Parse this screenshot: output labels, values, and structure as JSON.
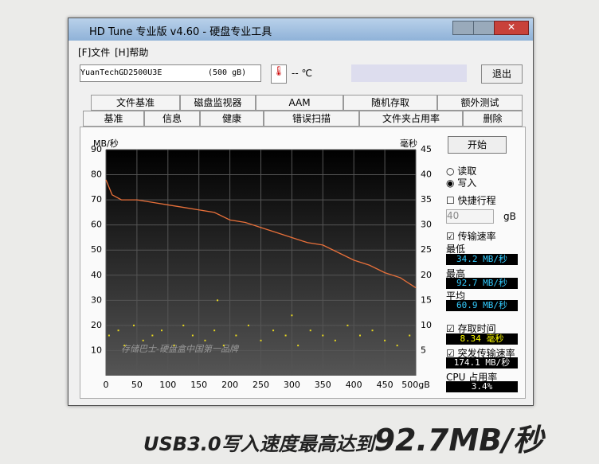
{
  "window": {
    "title": "HD Tune 专业版 v4.60 - 硬盘专业工具",
    "menu": [
      "[F]文件",
      "[H]帮助"
    ],
    "drive": "YuanTechGD2500U3E",
    "drive_size": "(500 gB)",
    "temperature": "-- ℃",
    "exit": "退出"
  },
  "tabs": {
    "row1": [
      "文件基准",
      "磁盘监视器",
      "AAM",
      "随机存取",
      "额外测试"
    ],
    "row2": [
      "基准",
      "信息",
      "健康",
      "错误扫描",
      "文件夹占用率",
      "删除"
    ]
  },
  "panel": {
    "start": "开始",
    "read": "读取",
    "write": "写入",
    "short_stroke": "快捷行程",
    "stroke_value": "40",
    "stroke_unit": "gB",
    "transfer_rate": "传输速率",
    "min_label": "最低",
    "min_value": "34.2 MB/秒",
    "max_label": "最高",
    "max_value": "92.7 MB/秒",
    "avg_label": "平均",
    "avg_value": "60.9 MB/秒",
    "access_time": "存取时间",
    "access_value": "8.34 毫秒",
    "burst_rate": "突发传输速率",
    "burst_value": "174.1 MB/秒",
    "cpu_label": "CPU 占用率",
    "cpu_value": "3.4%"
  },
  "chart_data": {
    "type": "line",
    "y_label": "MB/秒",
    "y2_label": "毫秒",
    "watermark": "存储巴士-硬盘盒中国第一品牌",
    "xlim": [
      0,
      500
    ],
    "xticks": [
      0,
      50,
      100,
      150,
      200,
      250,
      300,
      350,
      400,
      450,
      {
        "value": 500,
        "label": "500gB"
      }
    ],
    "ylim": [
      0,
      90
    ],
    "yticks": [
      10,
      20,
      30,
      40,
      50,
      60,
      70,
      80,
      90
    ],
    "y2lim": [
      0,
      45
    ],
    "y2ticks": [
      5,
      10,
      15,
      20,
      25,
      30,
      35,
      40,
      45
    ],
    "grid": true,
    "series": [
      {
        "name": "传输速率",
        "color": "#e8703a",
        "x": [
          0,
          10,
          25,
          50,
          75,
          100,
          125,
          150,
          175,
          200,
          225,
          250,
          275,
          300,
          325,
          350,
          375,
          400,
          425,
          450,
          475,
          500
        ],
        "values": [
          78,
          72,
          70,
          70,
          69,
          68,
          67,
          66,
          65,
          62,
          61,
          59,
          57,
          55,
          53,
          52,
          49,
          46,
          44,
          41,
          39,
          35
        ]
      },
      {
        "name": "存取时间",
        "type": "scatter",
        "axis": "y2",
        "color": "#e8d820",
        "x": [
          5,
          20,
          30,
          45,
          60,
          75,
          90,
          110,
          125,
          140,
          160,
          175,
          190,
          210,
          230,
          250,
          270,
          290,
          310,
          330,
          350,
          370,
          390,
          410,
          430,
          450,
          470,
          490,
          180,
          300
        ],
        "values": [
          8,
          9,
          6,
          10,
          7,
          8,
          9,
          6,
          10,
          8,
          7,
          9,
          6,
          8,
          10,
          7,
          9,
          8,
          6,
          9,
          8,
          7,
          10,
          8,
          9,
          7,
          6,
          8,
          15,
          12
        ]
      }
    ]
  },
  "caption": {
    "text": "USB3.0写入速度最高达到",
    "highlight": "92.7MB/秒"
  }
}
